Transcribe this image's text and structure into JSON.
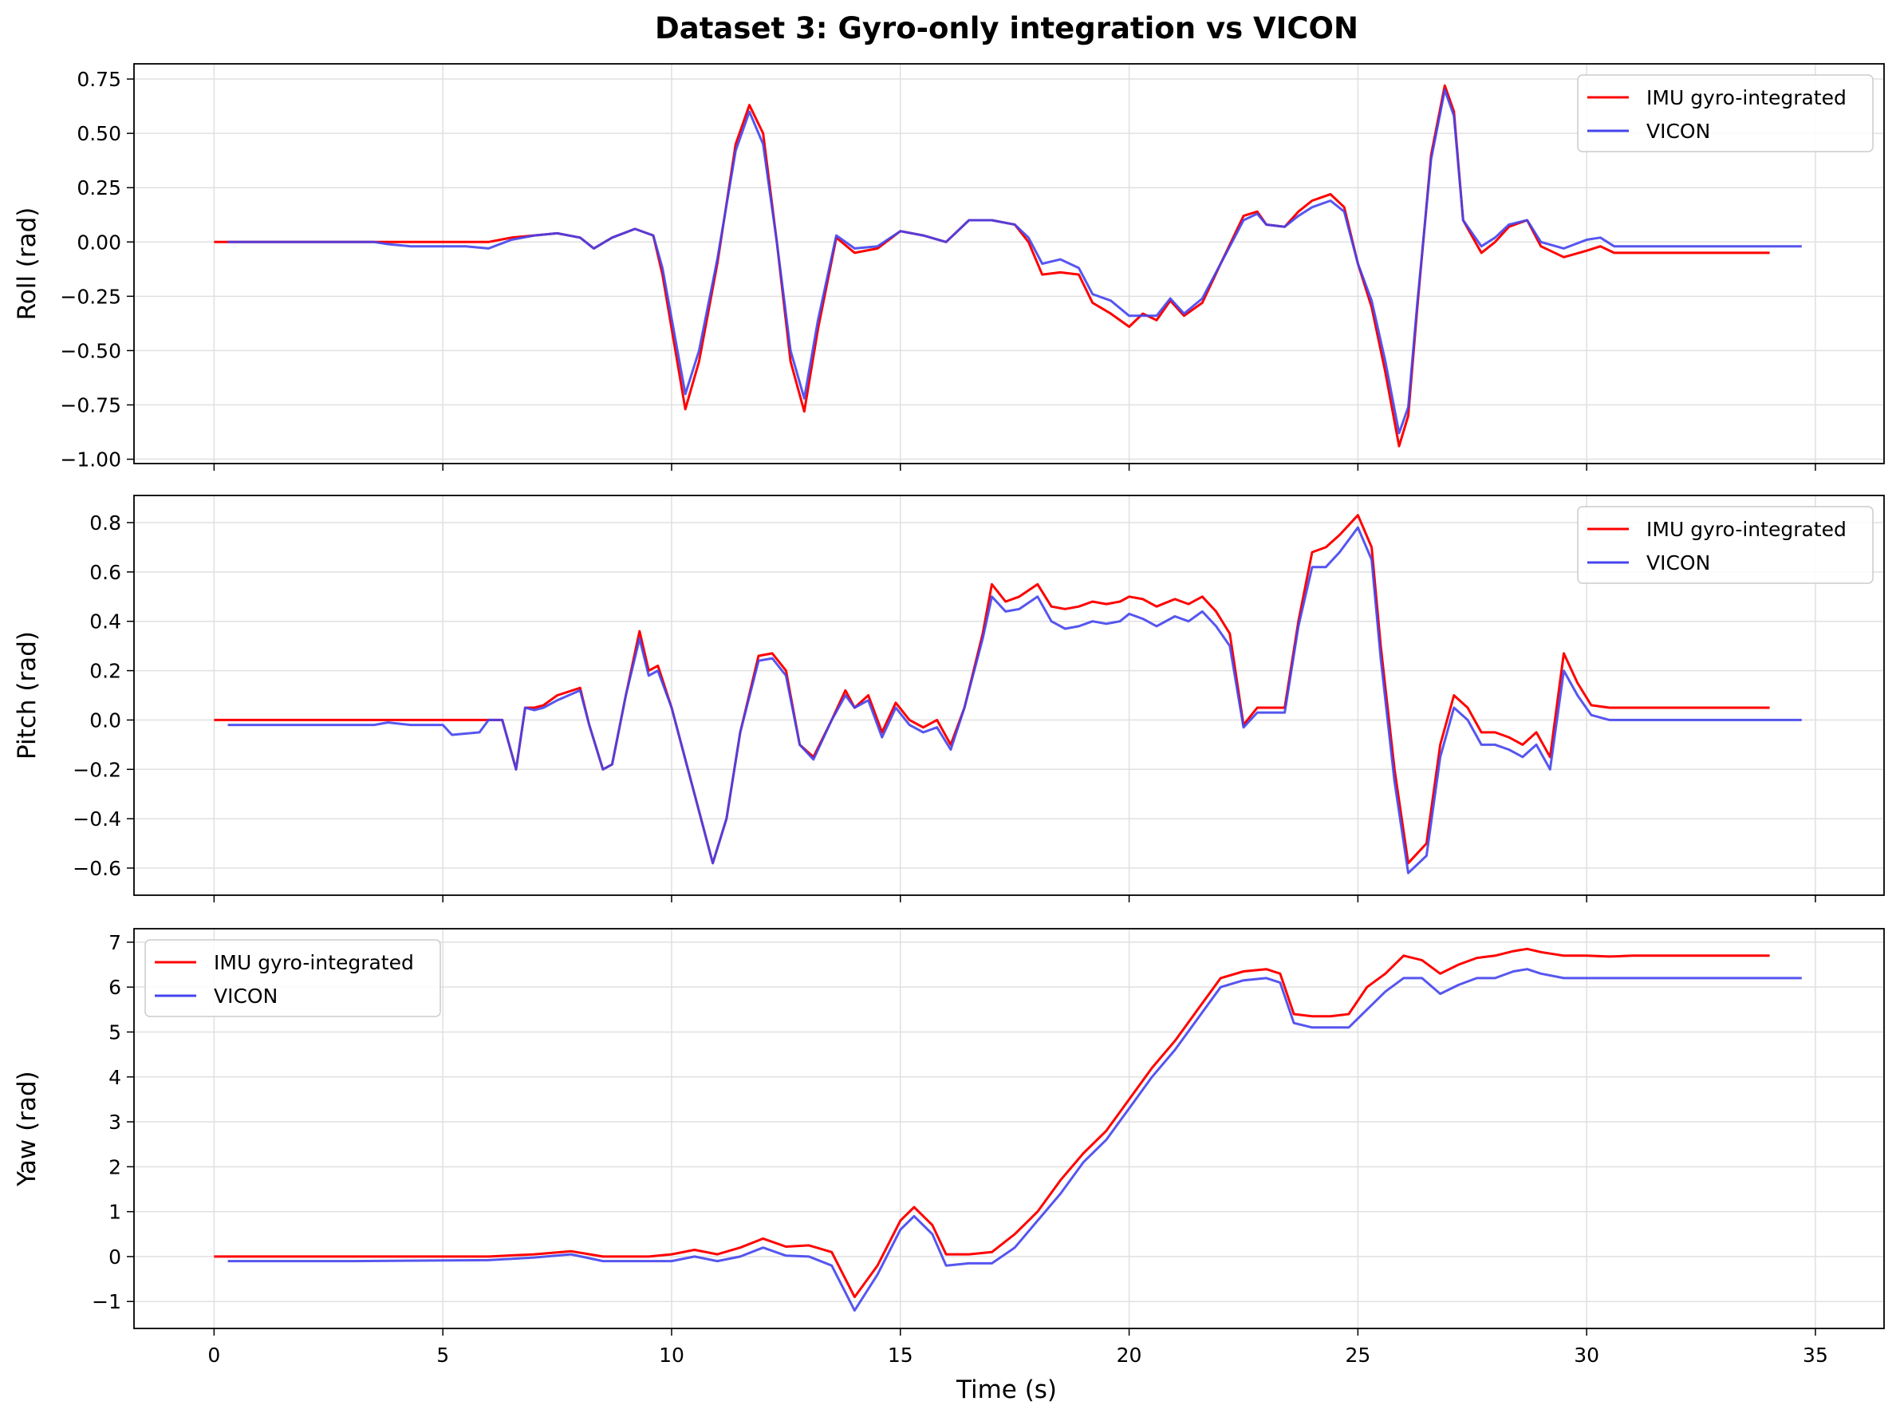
{
  "title": "Dataset 3: Gyro-only integration vs VICON",
  "xlabel": "Time (s)",
  "colors": {
    "imu": "#ff0000",
    "vicon": "#4444ee",
    "grid": "#e0e0e0"
  },
  "x_ticks": [
    0,
    5,
    10,
    15,
    20,
    25,
    30,
    35
  ],
  "chart_data": [
    {
      "type": "line",
      "ylabel": "Roll (rad)",
      "ylim": [
        -1.02,
        0.82
      ],
      "xlim": [
        -1.75,
        36.5
      ],
      "y_ticks": [
        0.75,
        0.5,
        0.25,
        0.0,
        -0.25,
        -0.5,
        -0.75,
        -1.0
      ],
      "y_tick_labels": [
        "0.75",
        "0.50",
        "0.25",
        "0.00",
        "−0.25",
        "−0.50",
        "−0.75",
        "−1.00"
      ],
      "grid": true,
      "legend": {
        "position": "top-right",
        "entries": [
          "IMU gyro-integrated",
          "VICON"
        ]
      },
      "series": [
        {
          "name": "IMU gyro-integrated",
          "color": "#ff0000",
          "x": [
            0,
            2,
            4,
            6,
            6.5,
            7,
            7.5,
            8,
            8.3,
            8.7,
            9.2,
            9.6,
            9.8,
            10.3,
            10.6,
            11.0,
            11.4,
            11.7,
            12.0,
            12.3,
            12.6,
            12.9,
            13.2,
            13.6,
            14.0,
            14.5,
            15.0,
            15.5,
            16.0,
            16.5,
            17.0,
            17.5,
            17.8,
            18.1,
            18.5,
            18.9,
            19.2,
            19.6,
            20.0,
            20.3,
            20.6,
            20.9,
            21.2,
            21.6,
            22.0,
            22.5,
            22.8,
            23.0,
            23.4,
            23.7,
            24.0,
            24.4,
            24.7,
            25.0,
            25.3,
            25.6,
            25.9,
            26.1,
            26.3,
            26.6,
            26.9,
            27.1,
            27.3,
            27.7,
            28.0,
            28.3,
            28.7,
            29.0,
            29.5,
            30.0,
            30.3,
            30.6,
            31.0,
            32.0,
            33.0,
            34.0
          ],
          "y": [
            0.0,
            0.0,
            0.0,
            0.0,
            0.02,
            0.03,
            0.04,
            0.02,
            -0.03,
            0.02,
            0.06,
            0.03,
            -0.15,
            -0.77,
            -0.55,
            -0.1,
            0.45,
            0.63,
            0.5,
            0.0,
            -0.55,
            -0.78,
            -0.4,
            0.02,
            -0.05,
            -0.03,
            0.05,
            0.03,
            0.0,
            0.1,
            0.1,
            0.08,
            0.0,
            -0.15,
            -0.14,
            -0.15,
            -0.28,
            -0.33,
            -0.39,
            -0.33,
            -0.36,
            -0.27,
            -0.34,
            -0.28,
            -0.1,
            0.12,
            0.14,
            0.08,
            0.07,
            0.14,
            0.19,
            0.22,
            0.16,
            -0.1,
            -0.3,
            -0.6,
            -0.94,
            -0.8,
            -0.3,
            0.4,
            0.72,
            0.6,
            0.1,
            -0.05,
            0.0,
            0.07,
            0.1,
            -0.02,
            -0.07,
            -0.04,
            -0.02,
            -0.05,
            -0.05,
            -0.05,
            -0.05,
            -0.05
          ]
        },
        {
          "name": "VICON",
          "color": "#4444ee",
          "x": [
            0.3,
            2,
            3.5,
            3.8,
            4.3,
            5.0,
            5.5,
            6.0,
            6.5,
            7.0,
            7.5,
            8.0,
            8.3,
            8.7,
            9.2,
            9.6,
            9.8,
            10.3,
            10.6,
            11.0,
            11.4,
            11.7,
            12.0,
            12.3,
            12.6,
            12.9,
            13.2,
            13.6,
            14.0,
            14.5,
            15.0,
            15.5,
            16.0,
            16.5,
            17.0,
            17.5,
            17.8,
            18.1,
            18.5,
            18.9,
            19.2,
            19.6,
            20.0,
            20.3,
            20.6,
            20.9,
            21.2,
            21.6,
            22.0,
            22.5,
            22.8,
            23.0,
            23.4,
            23.7,
            24.0,
            24.4,
            24.7,
            25.0,
            25.3,
            25.6,
            25.9,
            26.1,
            26.3,
            26.6,
            26.9,
            27.1,
            27.3,
            27.7,
            28.0,
            28.3,
            28.7,
            29.0,
            29.5,
            30.0,
            30.3,
            30.6,
            31.0,
            32.0,
            33.0,
            34.0,
            34.7
          ],
          "y": [
            0.0,
            0.0,
            0.0,
            -0.01,
            -0.02,
            -0.02,
            -0.02,
            -0.03,
            0.01,
            0.03,
            0.04,
            0.02,
            -0.03,
            0.02,
            0.06,
            0.03,
            -0.12,
            -0.7,
            -0.5,
            -0.08,
            0.42,
            0.6,
            0.45,
            0.0,
            -0.5,
            -0.72,
            -0.36,
            0.03,
            -0.03,
            -0.02,
            0.05,
            0.03,
            0.0,
            0.1,
            0.1,
            0.08,
            0.02,
            -0.1,
            -0.08,
            -0.12,
            -0.24,
            -0.27,
            -0.34,
            -0.34,
            -0.34,
            -0.26,
            -0.33,
            -0.26,
            -0.1,
            0.1,
            0.13,
            0.08,
            0.07,
            0.12,
            0.16,
            0.19,
            0.14,
            -0.1,
            -0.27,
            -0.55,
            -0.88,
            -0.76,
            -0.28,
            0.38,
            0.7,
            0.58,
            0.1,
            -0.02,
            0.02,
            0.08,
            0.1,
            0.0,
            -0.03,
            0.01,
            0.02,
            -0.02,
            -0.02,
            -0.02,
            -0.02,
            -0.02,
            -0.02
          ]
        }
      ]
    },
    {
      "type": "line",
      "ylabel": "Pitch (rad)",
      "ylim": [
        -0.71,
        0.91
      ],
      "xlim": [
        -1.75,
        36.5
      ],
      "y_ticks": [
        0.8,
        0.6,
        0.4,
        0.2,
        0.0,
        -0.2,
        -0.4,
        -0.6
      ],
      "y_tick_labels": [
        "0.8",
        "0.6",
        "0.4",
        "0.2",
        "0.0",
        "−0.2",
        "−0.4",
        "−0.6"
      ],
      "grid": true,
      "legend": {
        "position": "top-right",
        "entries": [
          "IMU gyro-integrated",
          "VICON"
        ]
      },
      "series": [
        {
          "name": "IMU gyro-integrated",
          "color": "#ff0000",
          "x": [
            0,
            3,
            5,
            6.0,
            6.3,
            6.6,
            6.8,
            7.0,
            7.2,
            7.5,
            8.0,
            8.2,
            8.5,
            8.7,
            9.0,
            9.3,
            9.5,
            9.7,
            10.0,
            10.5,
            10.9,
            11.2,
            11.5,
            11.9,
            12.2,
            12.5,
            12.8,
            13.1,
            13.5,
            13.8,
            14.0,
            14.3,
            14.6,
            14.9,
            15.2,
            15.5,
            15.8,
            16.1,
            16.4,
            16.8,
            17.0,
            17.3,
            17.6,
            18.0,
            18.3,
            18.6,
            18.9,
            19.2,
            19.5,
            19.8,
            20.0,
            20.3,
            20.6,
            21.0,
            21.3,
            21.6,
            21.9,
            22.2,
            22.5,
            22.8,
            23.1,
            23.4,
            23.7,
            24.0,
            24.3,
            24.6,
            25.0,
            25.3,
            25.5,
            25.8,
            26.1,
            26.5,
            26.8,
            27.1,
            27.4,
            27.7,
            28.0,
            28.3,
            28.6,
            28.9,
            29.2,
            29.5,
            29.8,
            30.1,
            30.5,
            31.0,
            32.0,
            33.0,
            34.0
          ],
          "y": [
            0.0,
            0.0,
            0.0,
            0.0,
            0.0,
            -0.2,
            0.05,
            0.05,
            0.06,
            0.1,
            0.13,
            -0.02,
            -0.2,
            -0.18,
            0.1,
            0.36,
            0.2,
            0.22,
            0.05,
            -0.3,
            -0.58,
            -0.4,
            -0.05,
            0.26,
            0.27,
            0.2,
            -0.1,
            -0.15,
            0.0,
            0.12,
            0.05,
            0.1,
            -0.05,
            0.07,
            0.0,
            -0.03,
            0.0,
            -0.1,
            0.05,
            0.35,
            0.55,
            0.48,
            0.5,
            0.55,
            0.46,
            0.45,
            0.46,
            0.48,
            0.47,
            0.48,
            0.5,
            0.49,
            0.46,
            0.49,
            0.47,
            0.5,
            0.44,
            0.35,
            -0.02,
            0.05,
            0.05,
            0.05,
            0.4,
            0.68,
            0.7,
            0.75,
            0.83,
            0.7,
            0.3,
            -0.2,
            -0.58,
            -0.5,
            -0.1,
            0.1,
            0.05,
            -0.05,
            -0.05,
            -0.07,
            -0.1,
            -0.05,
            -0.15,
            0.27,
            0.15,
            0.06,
            0.05,
            0.05,
            0.05,
            0.05,
            0.05
          ]
        },
        {
          "name": "VICON",
          "color": "#4444ee",
          "x": [
            0.3,
            2,
            3.5,
            3.8,
            4.3,
            5.0,
            5.2,
            5.8,
            6.0,
            6.3,
            6.6,
            6.8,
            7.0,
            7.2,
            7.5,
            8.0,
            8.2,
            8.5,
            8.7,
            9.0,
            9.3,
            9.5,
            9.7,
            10.0,
            10.5,
            10.9,
            11.2,
            11.5,
            11.9,
            12.2,
            12.5,
            12.8,
            13.1,
            13.5,
            13.8,
            14.0,
            14.3,
            14.6,
            14.9,
            15.2,
            15.5,
            15.8,
            16.1,
            16.4,
            16.8,
            17.0,
            17.3,
            17.6,
            18.0,
            18.3,
            18.6,
            18.9,
            19.2,
            19.5,
            19.8,
            20.0,
            20.3,
            20.6,
            21.0,
            21.3,
            21.6,
            21.9,
            22.2,
            22.5,
            22.8,
            23.1,
            23.4,
            23.7,
            24.0,
            24.3,
            24.6,
            25.0,
            25.3,
            25.5,
            25.8,
            26.1,
            26.5,
            26.8,
            27.1,
            27.4,
            27.7,
            28.0,
            28.3,
            28.6,
            28.9,
            29.2,
            29.5,
            29.8,
            30.1,
            30.5,
            31.0,
            32.0,
            33.0,
            34.0,
            34.7
          ],
          "y": [
            -0.02,
            -0.02,
            -0.02,
            -0.01,
            -0.02,
            -0.02,
            -0.06,
            -0.05,
            0.0,
            0.0,
            -0.2,
            0.05,
            0.04,
            0.05,
            0.08,
            0.12,
            -0.02,
            -0.2,
            -0.18,
            0.1,
            0.33,
            0.18,
            0.2,
            0.05,
            -0.3,
            -0.58,
            -0.4,
            -0.05,
            0.24,
            0.25,
            0.18,
            -0.1,
            -0.16,
            0.0,
            0.1,
            0.05,
            0.08,
            -0.07,
            0.05,
            -0.02,
            -0.05,
            -0.03,
            -0.12,
            0.05,
            0.33,
            0.5,
            0.44,
            0.45,
            0.5,
            0.4,
            0.37,
            0.38,
            0.4,
            0.39,
            0.4,
            0.43,
            0.41,
            0.38,
            0.42,
            0.4,
            0.44,
            0.38,
            0.3,
            -0.03,
            0.03,
            0.03,
            0.03,
            0.38,
            0.62,
            0.62,
            0.68,
            0.78,
            0.65,
            0.25,
            -0.25,
            -0.62,
            -0.55,
            -0.15,
            0.05,
            0.0,
            -0.1,
            -0.1,
            -0.12,
            -0.15,
            -0.1,
            -0.2,
            0.2,
            0.1,
            0.02,
            0.0,
            0.0,
            0.0,
            0.0,
            0.0,
            0.0
          ]
        }
      ]
    },
    {
      "type": "line",
      "ylabel": "Yaw (rad)",
      "ylim": [
        -1.6,
        7.3
      ],
      "xlim": [
        -1.75,
        36.5
      ],
      "y_ticks": [
        7,
        6,
        5,
        4,
        3,
        2,
        1,
        0,
        -1
      ],
      "y_tick_labels": [
        "7",
        "6",
        "5",
        "4",
        "3",
        "2",
        "1",
        "0",
        "−1"
      ],
      "grid": true,
      "legend": {
        "position": "top-left",
        "entries": [
          "IMU gyro-integrated",
          "VICON"
        ]
      },
      "series": [
        {
          "name": "IMU gyro-integrated",
          "color": "#ff0000",
          "x": [
            0,
            3,
            6,
            7,
            7.8,
            8.5,
            9.5,
            10.0,
            10.5,
            11.0,
            11.5,
            12.0,
            12.5,
            13.0,
            13.5,
            14.0,
            14.5,
            15.0,
            15.3,
            15.7,
            16.0,
            16.5,
            17.0,
            17.5,
            18.0,
            18.5,
            19.0,
            19.5,
            20.0,
            20.5,
            21.0,
            21.5,
            22.0,
            22.5,
            23.0,
            23.3,
            23.6,
            24.0,
            24.4,
            24.8,
            25.2,
            25.6,
            26.0,
            26.4,
            26.8,
            27.2,
            27.6,
            28.0,
            28.4,
            28.7,
            29.0,
            29.5,
            30.0,
            30.5,
            31.0,
            32.0,
            33.0,
            34.0
          ],
          "y": [
            0.0,
            0.0,
            0.0,
            0.05,
            0.12,
            0.0,
            0.0,
            0.05,
            0.15,
            0.05,
            0.2,
            0.4,
            0.22,
            0.25,
            0.1,
            -0.9,
            -0.2,
            0.8,
            1.1,
            0.7,
            0.05,
            0.05,
            0.1,
            0.5,
            1.0,
            1.7,
            2.3,
            2.8,
            3.5,
            4.2,
            4.8,
            5.5,
            6.2,
            6.35,
            6.4,
            6.3,
            5.4,
            5.35,
            5.35,
            5.4,
            6.0,
            6.3,
            6.7,
            6.6,
            6.3,
            6.5,
            6.65,
            6.7,
            6.8,
            6.85,
            6.78,
            6.7,
            6.7,
            6.68,
            6.7,
            6.7,
            6.7,
            6.7
          ]
        },
        {
          "name": "VICON",
          "color": "#4444ee",
          "x": [
            0.3,
            3,
            6,
            7,
            7.8,
            8.5,
            9.5,
            10.0,
            10.5,
            11.0,
            11.5,
            12.0,
            12.5,
            13.0,
            13.5,
            14.0,
            14.5,
            15.0,
            15.3,
            15.7,
            16.0,
            16.5,
            17.0,
            17.5,
            18.0,
            18.5,
            19.0,
            19.5,
            20.0,
            20.5,
            21.0,
            21.5,
            22.0,
            22.5,
            23.0,
            23.3,
            23.6,
            24.0,
            24.4,
            24.8,
            25.2,
            25.6,
            26.0,
            26.4,
            26.8,
            27.2,
            27.6,
            28.0,
            28.4,
            28.7,
            29.0,
            29.5,
            30.0,
            30.5,
            31.0,
            32.0,
            33.0,
            34.0,
            34.7
          ],
          "y": [
            -0.1,
            -0.1,
            -0.08,
            -0.02,
            0.05,
            -0.1,
            -0.1,
            -0.1,
            0.0,
            -0.1,
            0.0,
            0.2,
            0.02,
            0.0,
            -0.2,
            -1.2,
            -0.4,
            0.6,
            0.9,
            0.5,
            -0.2,
            -0.15,
            -0.15,
            0.2,
            0.8,
            1.4,
            2.1,
            2.6,
            3.3,
            4.0,
            4.6,
            5.3,
            6.0,
            6.15,
            6.2,
            6.1,
            5.2,
            5.1,
            5.1,
            5.1,
            5.5,
            5.9,
            6.2,
            6.2,
            5.85,
            6.05,
            6.2,
            6.2,
            6.35,
            6.4,
            6.3,
            6.2,
            6.2,
            6.2,
            6.2,
            6.2,
            6.2,
            6.2,
            6.2
          ]
        }
      ]
    }
  ]
}
